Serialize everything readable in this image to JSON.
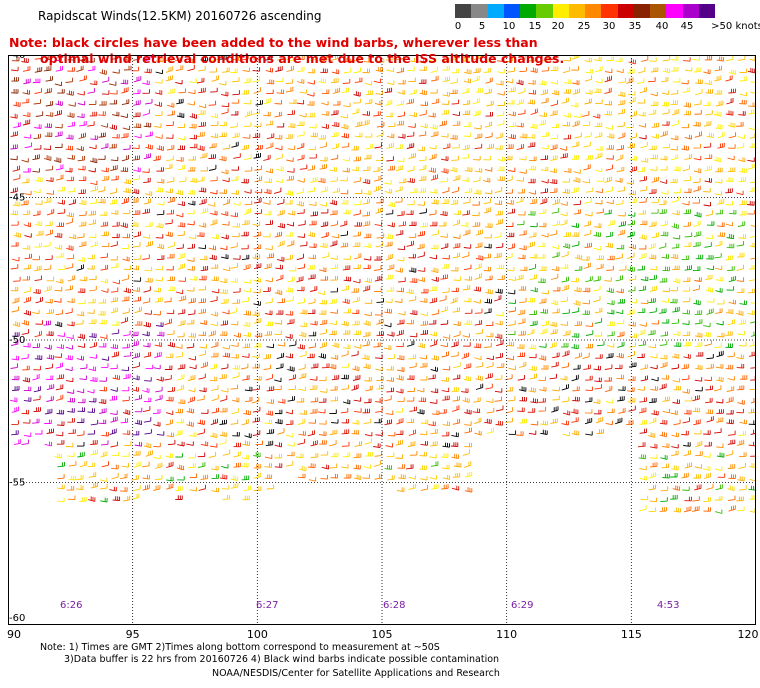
{
  "header": {
    "title": "Rapidscat Winds(12.5KM) 20160726 ascending",
    "note_line1": "Note: black circles have been added to the wind barbs, wherever less than",
    "note_line2": "optimal wind retrieval conditions are met due to the ISS altitude changes."
  },
  "colorbar": {
    "colors": [
      "#444444",
      "#888888",
      "#00aaff",
      "#0055ff",
      "#00aa00",
      "#66cc00",
      "#ffee00",
      "#ffbb00",
      "#ff8800",
      "#ff3300",
      "#cc0000",
      "#882200",
      "#aa5500",
      "#ff00ff",
      "#aa00cc",
      "#550088"
    ],
    "labels": [
      "0",
      "5",
      "10",
      "15",
      "20",
      "25",
      "30",
      "35",
      "40",
      "45",
      ">50 knots"
    ]
  },
  "map": {
    "lat_labels": [
      "-40",
      "-45",
      "-50",
      "-55",
      "-60"
    ],
    "lon_labels": [
      "90",
      "95",
      "100",
      "105",
      "110",
      "115",
      "120"
    ],
    "time_labels": [
      "6:26",
      "6:27",
      "6:28",
      "6:29",
      "4:53"
    ]
  },
  "footer": {
    "line1": "Note: 1) Times are GMT 2)Times along bottom correspond to measurement at ~50S",
    "line2": "3)Data buffer is 22 hrs from 20160726 4) Black wind barbs indicate possible contamination",
    "line3": "NOAA/NESDIS/Center for Satellite Applications and Research"
  }
}
